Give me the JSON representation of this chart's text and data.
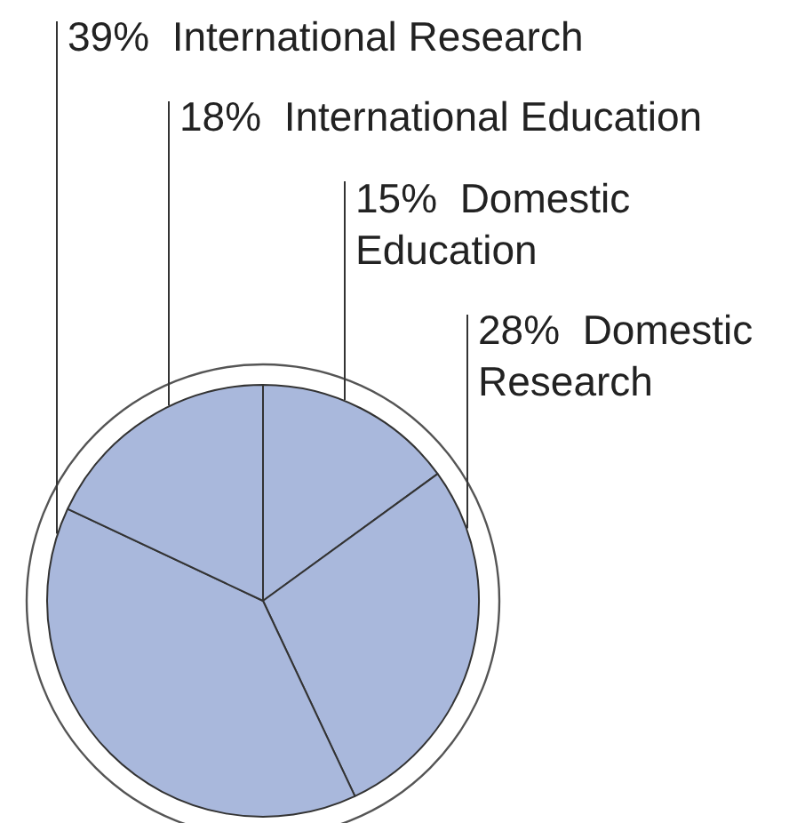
{
  "chart_data": {
    "type": "pie",
    "categories": [
      "Domestic Education",
      "Domestic Research",
      "International Research",
      "International Education"
    ],
    "values": [
      15,
      28,
      39,
      18
    ],
    "colors": [
      "#a9b8dc",
      "#a9b8dc",
      "#a9b8dc",
      "#a9b8dc"
    ],
    "value_labels": [
      "15%",
      "28%",
      "39%",
      "18%"
    ]
  }
}
